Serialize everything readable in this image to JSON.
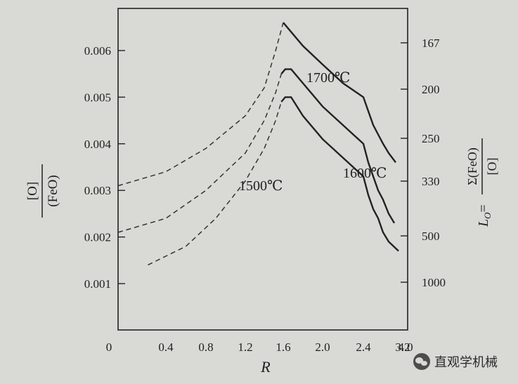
{
  "chart_data": {
    "type": "line",
    "xlabel": "R",
    "x_ticks": [
      "0",
      "0.4",
      "0.8",
      "1.2",
      "1.6",
      "2.0",
      "2.4",
      "3.2",
      "4.0"
    ],
    "y_left_ticks": [
      "0.001",
      "0.002",
      "0.003",
      "0.004",
      "0.005",
      "0.006"
    ],
    "y_left_tick_values": [
      0.001,
      0.002,
      0.003,
      0.004,
      0.005,
      0.006
    ],
    "y_left_label": {
      "numerator": "[O]",
      "denominator": "(FeO)"
    },
    "y_right_ticks": [
      "167",
      "200",
      "250",
      "330",
      "500",
      "1000"
    ],
    "y_right_label": {
      "prefix": "L",
      "subscript": "O",
      "equals": "=",
      "numerator": "Σ(FeO)",
      "denominator": "[O]"
    },
    "ylim": [
      0,
      0.0068
    ],
    "series": [
      {
        "name": "1700℃",
        "dashed": {
          "R": [
            0.0,
            0.4,
            0.8,
            1.2,
            1.4,
            1.52,
            1.6
          ],
          "values": [
            0.0031,
            0.0034,
            0.0039,
            0.0046,
            0.0052,
            0.006,
            0.0066
          ]
        },
        "solid": {
          "R": [
            1.6,
            1.8,
            2.0,
            2.2,
            2.4,
            2.6,
            2.8,
            3.0,
            3.2,
            3.4,
            3.65
          ],
          "values": [
            0.0066,
            0.0061,
            0.0057,
            0.0053,
            0.005,
            0.0047,
            0.0044,
            0.0042,
            0.004,
            0.0038,
            0.0036
          ]
        }
      },
      {
        "name": "1600℃",
        "dashed": {
          "R": [
            0.0,
            0.4,
            0.8,
            1.2,
            1.4,
            1.52,
            1.58
          ],
          "values": [
            0.0021,
            0.0024,
            0.003,
            0.0038,
            0.0045,
            0.0051,
            0.0055
          ]
        },
        "solid": {
          "R": [
            1.58,
            1.62,
            1.68,
            1.8,
            2.0,
            2.2,
            2.4,
            2.6,
            2.8,
            3.0,
            3.2,
            3.4,
            3.6
          ],
          "values": [
            0.0055,
            0.0056,
            0.0056,
            0.0053,
            0.0048,
            0.0044,
            0.004,
            0.0036,
            0.0033,
            0.003,
            0.0028,
            0.0025,
            0.0023
          ]
        }
      },
      {
        "name": "1500℃",
        "dashed": {
          "R": [
            0.25,
            0.6,
            0.9,
            1.2,
            1.4,
            1.52,
            1.58
          ],
          "values": [
            0.0014,
            0.0018,
            0.0024,
            0.0032,
            0.0039,
            0.0045,
            0.0049
          ]
        },
        "solid": {
          "R": [
            1.58,
            1.62,
            1.68,
            1.8,
            2.0,
            2.2,
            2.4,
            2.6,
            2.8,
            3.0,
            3.2,
            3.4,
            3.75
          ],
          "values": [
            0.0049,
            0.005,
            0.005,
            0.0046,
            0.0041,
            0.0037,
            0.0033,
            0.0029,
            0.0026,
            0.0024,
            0.0021,
            0.0019,
            0.0017
          ]
        }
      }
    ],
    "grid": false
  },
  "watermark": {
    "text": "直观学机械",
    "icon": "wechat-icon"
  }
}
